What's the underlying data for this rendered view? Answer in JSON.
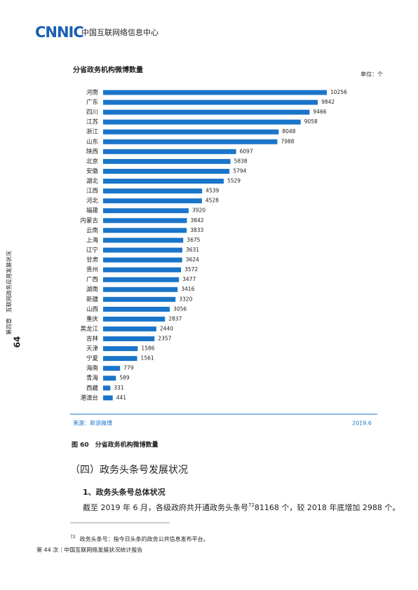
{
  "header": {
    "logo": "CNNIC",
    "org": "中国互联网络信息中心"
  },
  "sidebar": {
    "page": "64",
    "chapter": "第四章　互联网政务应用发展状况"
  },
  "chart_data": {
    "type": "bar",
    "orientation": "horizontal",
    "title": "分省政务机构微博数量",
    "unit": "单位：个",
    "categories": [
      "河南",
      "广东",
      "四川",
      "江苏",
      "浙江",
      "山东",
      "陕西",
      "北京",
      "安徽",
      "湖北",
      "江西",
      "河北",
      "福建",
      "内蒙古",
      "云南",
      "上海",
      "辽宁",
      "甘肃",
      "贵州",
      "广西",
      "湖南",
      "新疆",
      "山西",
      "重庆",
      "黑龙江",
      "吉林",
      "天津",
      "宁夏",
      "海南",
      "青海",
      "西藏",
      "港澳台"
    ],
    "values": [
      10256,
      9842,
      9466,
      9058,
      8048,
      7988,
      6097,
      5838,
      5794,
      5529,
      4539,
      4528,
      3920,
      3842,
      3833,
      3675,
      3631,
      3624,
      3572,
      3477,
      3416,
      3320,
      3056,
      2837,
      2440,
      2357,
      1586,
      1561,
      779,
      589,
      331,
      441
    ],
    "color": "#1a75c9",
    "source": "来源：新浪微博",
    "date": "2019.6"
  },
  "caption": "图 60　分省政务机构微博数量",
  "section_heading": "（四）政务头条号发展状况",
  "subheading": "1、政务头条号总体状况",
  "paragraph": {
    "text_before": "截至 2019 年 6 月，各级政府共开通政务头条号",
    "footnote_ref": "72",
    "text_after": "81168 个，较 2018 年底增加 2988 个。"
  },
  "footnote": {
    "number": "72",
    "text": "政务头条号：指今日头条的政务公共信息发布平台。"
  },
  "footer": "第 44 次｜中国互联网络发展状况统计报告"
}
